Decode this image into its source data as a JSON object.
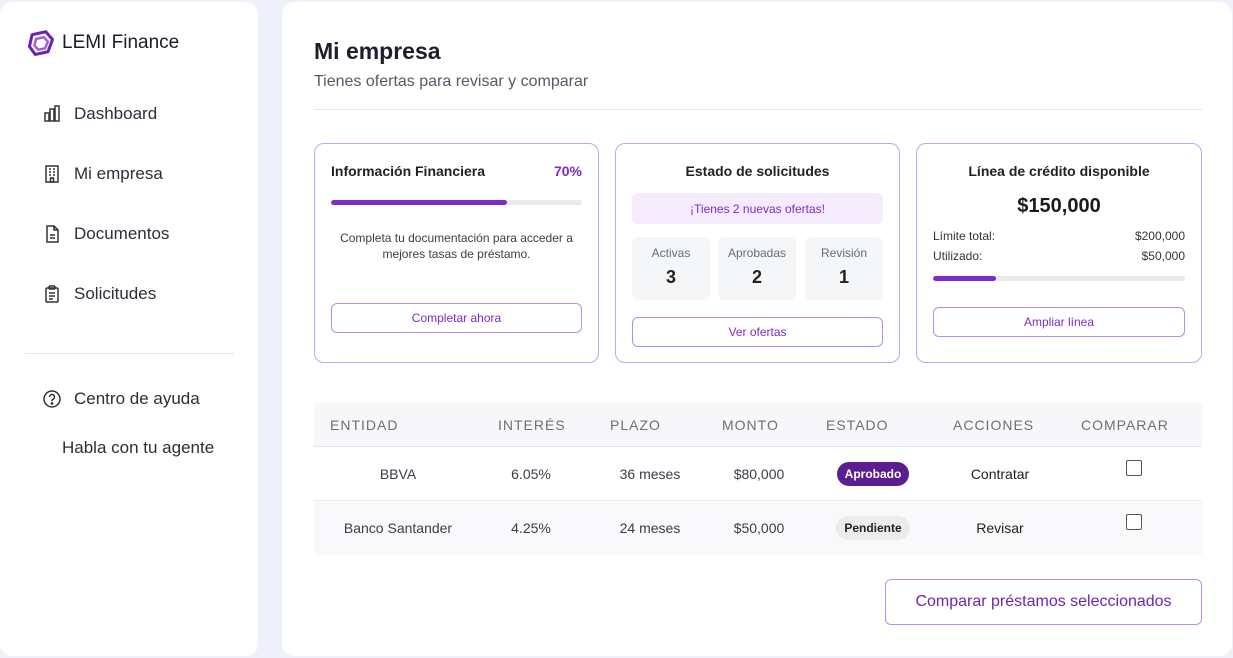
{
  "brand": {
    "name": "LEMI Finance",
    "accent": "#7e2cc9"
  },
  "sidebar": {
    "items": [
      {
        "label": "Dashboard",
        "icon": "bar-chart-icon"
      },
      {
        "label": "Mi empresa",
        "icon": "building-icon"
      },
      {
        "label": "Documentos",
        "icon": "document-icon"
      },
      {
        "label": "Solicitudes",
        "icon": "clipboard-icon"
      }
    ],
    "help": {
      "label": "Centro de ayuda",
      "icon": "question-circle-icon"
    },
    "agent_link": "Habla con tu agente"
  },
  "page": {
    "title": "Mi empresa",
    "subtitle": "Tienes ofertas para revisar y comparar"
  },
  "financial_info": {
    "title": "Información Financiera",
    "percent_label": "70%",
    "progress": 0.7,
    "description": "Completa tu documentación para acceder a mejores tasas de préstamo.",
    "button": "Completar ahora"
  },
  "requests": {
    "title": "Estado de solicitudes",
    "banner": "¡Tienes 2 nuevas ofertas!",
    "stats": [
      {
        "label": "Activas",
        "value": "3"
      },
      {
        "label": "Aprobadas",
        "value": "2"
      },
      {
        "label": "Revisión",
        "value": "1"
      }
    ],
    "button": "Ver ofertas"
  },
  "credit_line": {
    "title": "Línea de crédito disponible",
    "amount": "$150,000",
    "limit_label": "Límite total:",
    "limit_value": "$200,000",
    "used_label": "Utilizado:",
    "used_value": "$50,000",
    "used_fraction": 0.25,
    "button": "Ampliar línea"
  },
  "offers_table": {
    "headers": [
      "ENTIDAD",
      "INTERÉS",
      "PLAZO",
      "MONTO",
      "ESTADO",
      "ACCIONES",
      "COMPARAR"
    ],
    "rows": [
      {
        "entity": "BBVA",
        "rate": "6.05%",
        "term": "36 meses",
        "amount": "$80,000",
        "status": "Aprobado",
        "action": "Contratar",
        "compare": false
      },
      {
        "entity": "Banco Santander",
        "rate": "4.25%",
        "term": "24 meses",
        "amount": "$50,000",
        "status": "Pendiente",
        "action": "Revisar",
        "compare": false
      }
    ]
  },
  "compare_button": "Comparar préstamos seleccionados"
}
